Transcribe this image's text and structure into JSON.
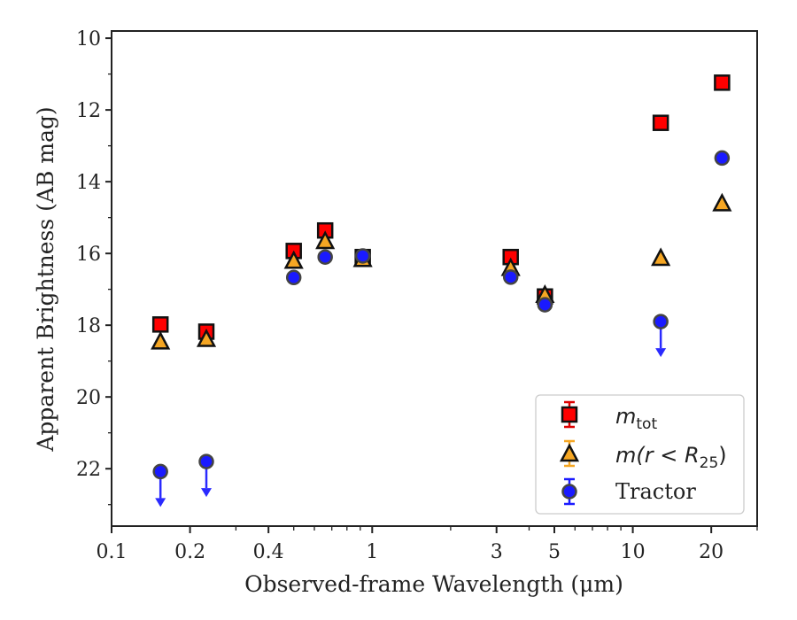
{
  "chart_data": {
    "type": "scatter",
    "xlabel": "Observed-frame Wavelength (μm)",
    "ylabel": "Apparent Brightness (AB mag)",
    "xscale": "log",
    "xlim": [
      0.1,
      30
    ],
    "ylim": [
      23.6,
      9.8
    ],
    "y_inverted": true,
    "x_ticks": [
      0.1,
      0.2,
      0.4,
      1,
      3,
      5,
      10,
      20
    ],
    "x_tick_labels": [
      "0.1",
      "0.2",
      "0.4",
      "1",
      "3",
      "5",
      "10",
      "20"
    ],
    "y_ticks": [
      10,
      12,
      14,
      16,
      18,
      20,
      22
    ],
    "y_tick_labels": [
      "10",
      "12",
      "14",
      "16",
      "18",
      "20",
      "22"
    ],
    "grid": false,
    "legend_position": "lower-right",
    "series": [
      {
        "name_main": "m",
        "name_sub": "tot",
        "marker": "square",
        "color": "#ff0000",
        "edge": "#111111",
        "points": [
          {
            "x": 0.154,
            "y": 17.98
          },
          {
            "x": 0.231,
            "y": 18.18
          },
          {
            "x": 0.5,
            "y": 15.93
          },
          {
            "x": 0.66,
            "y": 15.36
          },
          {
            "x": 0.92,
            "y": 16.1
          },
          {
            "x": 3.4,
            "y": 16.1
          },
          {
            "x": 4.6,
            "y": 17.2
          },
          {
            "x": 12.8,
            "y": 12.36
          },
          {
            "x": 22.0,
            "y": 11.24
          }
        ]
      },
      {
        "name_main": "m(r < R",
        "name_sub": "25",
        "name_tail": ")",
        "marker": "triangle",
        "color": "#f5a623",
        "edge": "#111111",
        "points": [
          {
            "x": 0.154,
            "y": 18.45
          },
          {
            "x": 0.231,
            "y": 18.38
          },
          {
            "x": 0.5,
            "y": 16.2
          },
          {
            "x": 0.66,
            "y": 15.65
          },
          {
            "x": 0.92,
            "y": 16.15
          },
          {
            "x": 3.4,
            "y": 16.4
          },
          {
            "x": 4.6,
            "y": 17.15
          },
          {
            "x": 12.8,
            "y": 16.12
          },
          {
            "x": 22.0,
            "y": 14.6
          }
        ]
      },
      {
        "name": "Tractor",
        "marker": "circle",
        "color": "#1a1aff",
        "edge": "#444444",
        "points": [
          {
            "x": 0.154,
            "y": 22.08,
            "upper_limit": true
          },
          {
            "x": 0.231,
            "y": 21.8,
            "upper_limit": true
          },
          {
            "x": 0.5,
            "y": 16.67
          },
          {
            "x": 0.66,
            "y": 16.1
          },
          {
            "x": 0.92,
            "y": 16.07
          },
          {
            "x": 3.4,
            "y": 16.66
          },
          {
            "x": 4.6,
            "y": 17.43
          },
          {
            "x": 12.8,
            "y": 17.9,
            "upper_limit": true
          },
          {
            "x": 22.0,
            "y": 13.34
          }
        ]
      }
    ]
  },
  "legend": {
    "entries": [
      {
        "math": "m",
        "sub": "tot",
        "tail": ""
      },
      {
        "math": "m(r < R",
        "sub": "25",
        "tail": ")"
      },
      {
        "text": "Tractor"
      }
    ]
  }
}
